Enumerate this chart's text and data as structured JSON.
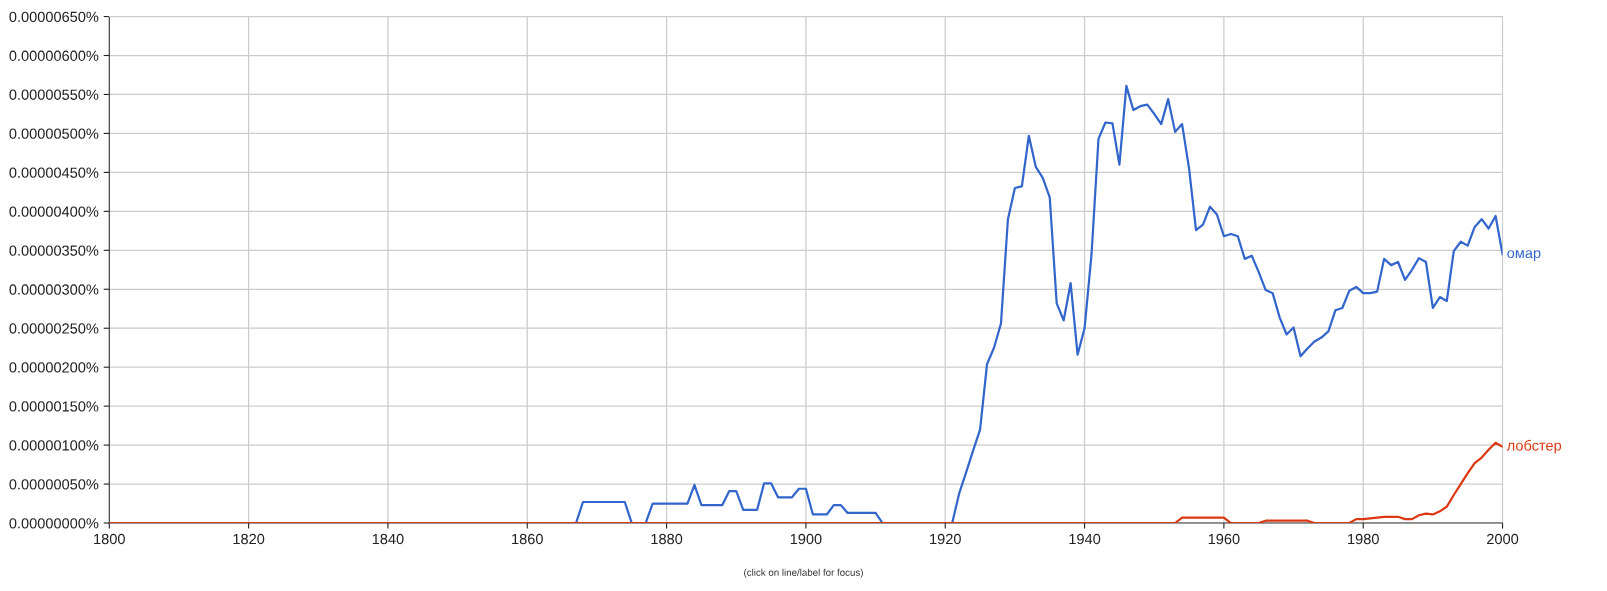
{
  "chart_data": {
    "type": "line",
    "xlim": [
      1800,
      2000
    ],
    "xticks": [
      1800,
      1820,
      1840,
      1860,
      1880,
      1900,
      1920,
      1940,
      1960,
      1980,
      2000
    ],
    "ylim": [
      0,
      6.5e-06
    ],
    "yticks": [
      {
        "value": 0,
        "label": "0.00000000%"
      },
      {
        "value": 5e-07,
        "label": "0.00000050%"
      },
      {
        "value": 1e-06,
        "label": "0.00000100%"
      },
      {
        "value": 1.5e-06,
        "label": "0.00000150%"
      },
      {
        "value": 2e-06,
        "label": "0.00000200%"
      },
      {
        "value": 2.5e-06,
        "label": "0.00000250%"
      },
      {
        "value": 3e-06,
        "label": "0.00000300%"
      },
      {
        "value": 3.5e-06,
        "label": "0.00000350%"
      },
      {
        "value": 4e-06,
        "label": "0.00000400%"
      },
      {
        "value": 4.5e-06,
        "label": "0.00000450%"
      },
      {
        "value": 5e-06,
        "label": "0.00000500%"
      },
      {
        "value": 5.5e-06,
        "label": "0.00000550%"
      },
      {
        "value": 6e-06,
        "label": "0.00000600%"
      },
      {
        "value": 6.5e-06,
        "label": "0.00000650%"
      }
    ],
    "grid": true,
    "legend": false,
    "annotations": [
      "(click on line/label for focus)"
    ],
    "series": [
      {
        "name": "омар",
        "color": "#3366cc",
        "x": [
          1800,
          1867,
          1868,
          1874,
          1875,
          1877,
          1878,
          1883,
          1884,
          1885,
          1888,
          1889,
          1890,
          1891,
          1893,
          1894,
          1895,
          1896,
          1898,
          1899,
          1900,
          1901,
          1903,
          1904,
          1905,
          1906,
          1910,
          1911,
          1921,
          1922,
          1923,
          1924,
          1925,
          1926,
          1927,
          1928,
          1929,
          1930,
          1931,
          1932,
          1933,
          1934,
          1935,
          1936,
          1937,
          1938,
          1939,
          1940,
          1941,
          1942,
          1943,
          1944,
          1945,
          1946,
          1947,
          1948,
          1949,
          1950,
          1951,
          1952,
          1953,
          1954,
          1955,
          1956,
          1957,
          1958,
          1959,
          1960,
          1961,
          1962,
          1963,
          1964,
          1965,
          1966,
          1967,
          1968,
          1969,
          1970,
          1971,
          1972,
          1973,
          1974,
          1975,
          1976,
          1977,
          1978,
          1979,
          1980,
          1981,
          1982,
          1983,
          1984,
          1985,
          1986,
          1987,
          1988,
          1989,
          1990,
          1991,
          1992,
          1993,
          1994,
          1995,
          1996,
          1997,
          1998,
          1999,
          2000
        ],
        "values": [
          0,
          0,
          2.7e-07,
          2.7e-07,
          0,
          0,
          2.5e-07,
          2.5e-07,
          4.9e-07,
          2.3e-07,
          2.3e-07,
          4.1e-07,
          4.1e-07,
          1.7e-07,
          1.7e-07,
          5.1e-07,
          5.1e-07,
          3.3e-07,
          3.3e-07,
          4.4e-07,
          4.4e-07,
          1.1e-07,
          1.1e-07,
          2.3e-07,
          2.3e-07,
          1.3e-07,
          1.3e-07,
          0,
          0,
          3.8e-07,
          6.5e-07,
          9.3e-07,
          1.2e-06,
          2.04e-06,
          2.25e-06,
          2.56e-06,
          3.9e-06,
          4.3e-06,
          4.32e-06,
          4.97e-06,
          4.57e-06,
          4.43e-06,
          4.18e-06,
          2.82e-06,
          2.6e-06,
          3.08e-06,
          2.16e-06,
          2.5e-06,
          3.45e-06,
          4.93e-06,
          5.14e-06,
          5.13e-06,
          4.6e-06,
          5.61e-06,
          5.3e-06,
          5.35e-06,
          5.37e-06,
          5.25e-06,
          5.12e-06,
          5.44e-06,
          5.02e-06,
          5.12e-06,
          4.55e-06,
          3.76e-06,
          3.83e-06,
          4.06e-06,
          3.96e-06,
          3.68e-06,
          3.71e-06,
          3.68e-06,
          3.39e-06,
          3.43e-06,
          3.22e-06,
          2.99e-06,
          2.95e-06,
          2.64e-06,
          2.42e-06,
          2.51e-06,
          2.14e-06,
          2.24e-06,
          2.33e-06,
          2.38e-06,
          2.46e-06,
          2.73e-06,
          2.76e-06,
          2.98e-06,
          3.03e-06,
          2.95e-06,
          2.95e-06,
          2.97e-06,
          3.39e-06,
          3.31e-06,
          3.35e-06,
          3.12e-06,
          3.25e-06,
          3.4e-06,
          3.35e-06,
          2.76e-06,
          2.9e-06,
          2.85e-06,
          3.49e-06,
          3.61e-06,
          3.56e-06,
          3.8e-06,
          3.9e-06,
          3.78e-06,
          3.94e-06,
          3.45e-06
        ]
      },
      {
        "name": "лобстер",
        "color": "#dc3912",
        "x": [
          1800,
          1953,
          1954,
          1960,
          1961,
          1965,
          1966,
          1972,
          1973,
          1978,
          1979,
          1980,
          1981,
          1983,
          1985,
          1986,
          1987,
          1988,
          1989,
          1990,
          1991,
          1992,
          1993,
          1994,
          1995,
          1996,
          1997,
          1998,
          1999,
          2000
        ],
        "values": [
          0,
          0,
          7e-08,
          7e-08,
          0,
          0,
          3e-08,
          3e-08,
          0,
          0,
          5e-08,
          5e-08,
          6e-08,
          8e-08,
          8e-08,
          5e-08,
          5e-08,
          1e-07,
          1.2e-07,
          1.1e-07,
          1.5e-07,
          2.1e-07,
          3.6e-07,
          5e-07,
          6.4e-07,
          7.7e-07,
          8.4e-07,
          9.4e-07,
          1.03e-06,
          9.8e-07
        ]
      }
    ]
  }
}
